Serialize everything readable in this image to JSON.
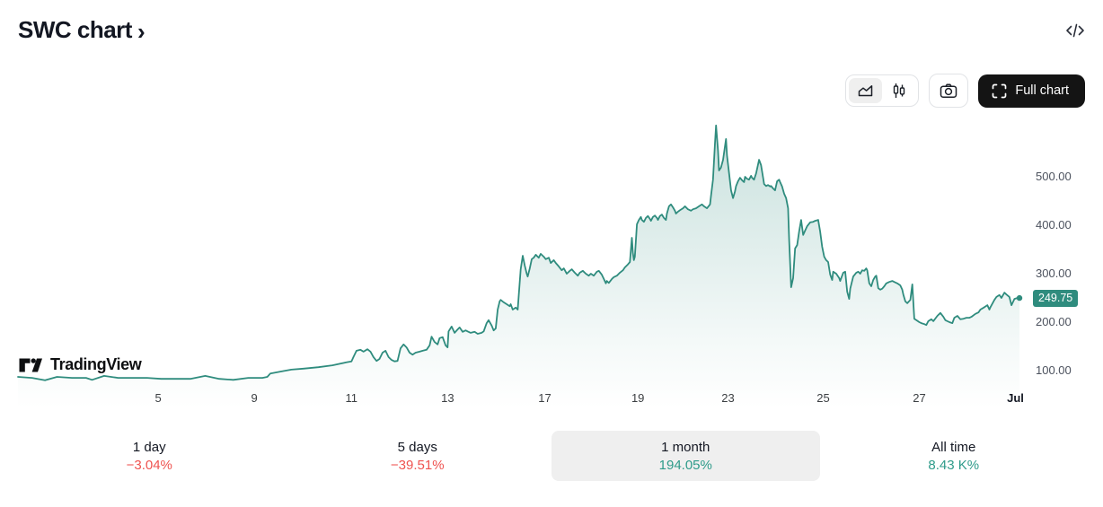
{
  "header": {
    "title": "SWC chart",
    "chevron": "›"
  },
  "toolbar": {
    "chart_type_options": [
      "area",
      "candles"
    ],
    "chart_type_selected": "area",
    "full_chart_label": "Full chart"
  },
  "watermark": {
    "brand": "TradingView"
  },
  "colors": {
    "accent": "#2F8C7E",
    "up": "#2E9B8A",
    "down": "#EF5350",
    "selected_bg": "#EFEFEF",
    "button_dark": "#141414",
    "axis_text": "#4C525E"
  },
  "chart_data": {
    "type": "area",
    "title": "SWC chart",
    "symbol": "SWC",
    "last_price": "249.75",
    "last_price_value": 249.75,
    "ylim": [
      22.2,
      624.1
    ],
    "grid": false,
    "y_ticks": [
      {
        "value": 500,
        "label": "500.00"
      },
      {
        "value": 400,
        "label": "400.00"
      },
      {
        "value": 300,
        "label": "300.00"
      },
      {
        "value": 200,
        "label": "200.00"
      },
      {
        "value": 100,
        "label": "100.00"
      }
    ],
    "x_ticks": [
      {
        "pos": 0.14,
        "label": "5"
      },
      {
        "pos": 0.236,
        "label": "9"
      },
      {
        "pos": 0.333,
        "label": "11"
      },
      {
        "pos": 0.429,
        "label": "13"
      },
      {
        "pos": 0.526,
        "label": "17"
      },
      {
        "pos": 0.619,
        "label": "19"
      },
      {
        "pos": 0.709,
        "label": "23"
      },
      {
        "pos": 0.804,
        "label": "25"
      },
      {
        "pos": 0.9,
        "label": "27"
      },
      {
        "pos": 0.996,
        "label": "Jul",
        "bold": true
      }
    ],
    "points": [
      [
        0,
        87
      ],
      [
        0.014,
        85
      ],
      [
        0.027,
        80
      ],
      [
        0.039,
        87
      ],
      [
        0.054,
        85
      ],
      [
        0.068,
        85
      ],
      [
        0.074,
        81
      ],
      [
        0.086,
        89
      ],
      [
        0.1,
        85
      ],
      [
        0.115,
        85
      ],
      [
        0.129,
        85
      ],
      [
        0.143,
        83
      ],
      [
        0.158,
        83
      ],
      [
        0.172,
        83
      ],
      [
        0.187,
        89
      ],
      [
        0.201,
        83
      ],
      [
        0.215,
        81
      ],
      [
        0.23,
        85
      ],
      [
        0.244,
        85
      ],
      [
        0.249,
        87
      ],
      [
        0.252,
        94
      ],
      [
        0.262,
        98
      ],
      [
        0.273,
        102
      ],
      [
        0.285,
        104
      ],
      [
        0.3,
        107
      ],
      [
        0.314,
        111
      ],
      [
        0.328,
        117
      ],
      [
        0.333,
        119
      ],
      [
        0.335,
        128
      ],
      [
        0.338,
        141
      ],
      [
        0.342,
        143
      ],
      [
        0.345,
        139
      ],
      [
        0.349,
        144
      ],
      [
        0.352,
        139
      ],
      [
        0.355,
        128
      ],
      [
        0.358,
        120
      ],
      [
        0.361,
        124
      ],
      [
        0.364,
        137
      ],
      [
        0.367,
        141
      ],
      [
        0.37,
        128
      ],
      [
        0.373,
        122
      ],
      [
        0.376,
        119
      ],
      [
        0.379,
        120
      ],
      [
        0.382,
        146
      ],
      [
        0.385,
        154
      ],
      [
        0.388,
        148
      ],
      [
        0.391,
        137
      ],
      [
        0.394,
        133
      ],
      [
        0.397,
        137
      ],
      [
        0.401,
        139
      ],
      [
        0.404,
        141
      ],
      [
        0.408,
        143
      ],
      [
        0.411,
        152
      ],
      [
        0.413,
        170
      ],
      [
        0.416,
        159
      ],
      [
        0.419,
        154
      ],
      [
        0.421,
        167
      ],
      [
        0.424,
        169
      ],
      [
        0.427,
        152
      ],
      [
        0.429,
        148
      ],
      [
        0.43,
        181
      ],
      [
        0.433,
        191
      ],
      [
        0.436,
        178
      ],
      [
        0.439,
        185
      ],
      [
        0.441,
        189
      ],
      [
        0.444,
        180
      ],
      [
        0.447,
        183
      ],
      [
        0.449,
        181
      ],
      [
        0.452,
        178
      ],
      [
        0.456,
        180
      ],
      [
        0.459,
        176
      ],
      [
        0.463,
        178
      ],
      [
        0.465,
        181
      ],
      [
        0.468,
        198
      ],
      [
        0.47,
        204
      ],
      [
        0.473,
        193
      ],
      [
        0.475,
        183
      ],
      [
        0.477,
        187
      ],
      [
        0.479,
        226
      ],
      [
        0.481,
        243
      ],
      [
        0.482,
        246
      ],
      [
        0.485,
        241
      ],
      [
        0.488,
        237
      ],
      [
        0.491,
        233
      ],
      [
        0.492,
        237
      ],
      [
        0.494,
        226
      ],
      [
        0.497,
        230
      ],
      [
        0.499,
        226
      ],
      [
        0.5,
        254
      ],
      [
        0.502,
        309
      ],
      [
        0.504,
        337
      ],
      [
        0.506,
        317
      ],
      [
        0.508,
        300
      ],
      [
        0.509,
        294
      ],
      [
        0.511,
        311
      ],
      [
        0.513,
        330
      ],
      [
        0.515,
        333
      ],
      [
        0.517,
        339
      ],
      [
        0.52,
        333
      ],
      [
        0.522,
        341
      ],
      [
        0.525,
        335
      ],
      [
        0.527,
        330
      ],
      [
        0.53,
        333
      ],
      [
        0.532,
        322
      ],
      [
        0.535,
        328
      ],
      [
        0.537,
        322
      ],
      [
        0.54,
        315
      ],
      [
        0.543,
        307
      ],
      [
        0.545,
        311
      ],
      [
        0.548,
        300
      ],
      [
        0.551,
        306
      ],
      [
        0.553,
        309
      ],
      [
        0.556,
        302
      ],
      [
        0.559,
        296
      ],
      [
        0.561,
        302
      ],
      [
        0.564,
        306
      ],
      [
        0.567,
        300
      ],
      [
        0.57,
        296
      ],
      [
        0.572,
        300
      ],
      [
        0.575,
        296
      ],
      [
        0.578,
        304
      ],
      [
        0.58,
        306
      ],
      [
        0.583,
        298
      ],
      [
        0.585,
        289
      ],
      [
        0.587,
        280
      ],
      [
        0.588,
        285
      ],
      [
        0.59,
        281
      ],
      [
        0.593,
        289
      ],
      [
        0.595,
        293
      ],
      [
        0.598,
        296
      ],
      [
        0.601,
        302
      ],
      [
        0.604,
        307
      ],
      [
        0.606,
        313
      ],
      [
        0.609,
        319
      ],
      [
        0.611,
        324
      ],
      [
        0.613,
        374
      ],
      [
        0.614,
        343
      ],
      [
        0.615,
        328
      ],
      [
        0.616,
        335
      ],
      [
        0.618,
        402
      ],
      [
        0.62,
        411
      ],
      [
        0.622,
        417
      ],
      [
        0.623,
        411
      ],
      [
        0.625,
        407
      ],
      [
        0.627,
        415
      ],
      [
        0.629,
        419
      ],
      [
        0.631,
        413
      ],
      [
        0.632,
        409
      ],
      [
        0.634,
        417
      ],
      [
        0.636,
        420
      ],
      [
        0.638,
        415
      ],
      [
        0.639,
        411
      ],
      [
        0.641,
        419
      ],
      [
        0.643,
        422
      ],
      [
        0.645,
        415
      ],
      [
        0.647,
        411
      ],
      [
        0.648,
        424
      ],
      [
        0.65,
        439
      ],
      [
        0.652,
        443
      ],
      [
        0.654,
        437
      ],
      [
        0.656,
        430
      ],
      [
        0.657,
        424
      ],
      [
        0.659,
        428
      ],
      [
        0.661,
        431
      ],
      [
        0.664,
        435
      ],
      [
        0.666,
        439
      ],
      [
        0.669,
        433
      ],
      [
        0.672,
        430
      ],
      [
        0.674,
        433
      ],
      [
        0.677,
        435
      ],
      [
        0.68,
        439
      ],
      [
        0.683,
        443
      ],
      [
        0.685,
        439
      ],
      [
        0.688,
        435
      ],
      [
        0.691,
        443
      ],
      [
        0.692,
        461
      ],
      [
        0.694,
        494
      ],
      [
        0.696,
        569
      ],
      [
        0.697,
        606
      ],
      [
        0.699,
        554
      ],
      [
        0.7,
        513
      ],
      [
        0.702,
        519
      ],
      [
        0.704,
        535
      ],
      [
        0.707,
        578
      ],
      [
        0.708,
        544
      ],
      [
        0.71,
        509
      ],
      [
        0.712,
        472
      ],
      [
        0.714,
        456
      ],
      [
        0.716,
        470
      ],
      [
        0.717,
        481
      ],
      [
        0.719,
        491
      ],
      [
        0.721,
        498
      ],
      [
        0.723,
        493
      ],
      [
        0.725,
        489
      ],
      [
        0.726,
        500
      ],
      [
        0.728,
        496
      ],
      [
        0.73,
        494
      ],
      [
        0.732,
        502
      ],
      [
        0.733,
        498
      ],
      [
        0.735,
        494
      ],
      [
        0.737,
        507
      ],
      [
        0.74,
        535
      ],
      [
        0.742,
        524
      ],
      [
        0.744,
        498
      ],
      [
        0.745,
        485
      ],
      [
        0.747,
        481
      ],
      [
        0.749,
        483
      ],
      [
        0.751,
        480
      ],
      [
        0.752,
        481
      ],
      [
        0.754,
        476
      ],
      [
        0.756,
        472
      ],
      [
        0.758,
        491
      ],
      [
        0.76,
        494
      ],
      [
        0.761,
        489
      ],
      [
        0.763,
        480
      ],
      [
        0.765,
        465
      ],
      [
        0.767,
        456
      ],
      [
        0.769,
        435
      ],
      [
        0.77,
        369
      ],
      [
        0.772,
        272
      ],
      [
        0.774,
        291
      ],
      [
        0.776,
        352
      ],
      [
        0.778,
        359
      ],
      [
        0.78,
        387
      ],
      [
        0.782,
        411
      ],
      [
        0.784,
        380
      ],
      [
        0.786,
        389
      ],
      [
        0.788,
        398
      ],
      [
        0.791,
        406
      ],
      [
        0.794,
        407
      ],
      [
        0.796,
        409
      ],
      [
        0.799,
        411
      ],
      [
        0.801,
        387
      ],
      [
        0.803,
        356
      ],
      [
        0.805,
        335
      ],
      [
        0.807,
        328
      ],
      [
        0.809,
        324
      ],
      [
        0.811,
        298
      ],
      [
        0.813,
        287
      ],
      [
        0.814,
        304
      ],
      [
        0.817,
        300
      ],
      [
        0.82,
        291
      ],
      [
        0.821,
        285
      ],
      [
        0.824,
        302
      ],
      [
        0.826,
        304
      ],
      [
        0.828,
        263
      ],
      [
        0.83,
        248
      ],
      [
        0.831,
        269
      ],
      [
        0.834,
        294
      ],
      [
        0.837,
        302
      ],
      [
        0.839,
        304
      ],
      [
        0.841,
        300
      ],
      [
        0.843,
        307
      ],
      [
        0.845,
        306
      ],
      [
        0.847,
        311
      ],
      [
        0.848,
        307
      ],
      [
        0.85,
        280
      ],
      [
        0.852,
        274
      ],
      [
        0.854,
        287
      ],
      [
        0.856,
        294
      ],
      [
        0.857,
        296
      ],
      [
        0.859,
        270
      ],
      [
        0.861,
        267
      ],
      [
        0.863,
        269
      ],
      [
        0.865,
        274
      ],
      [
        0.867,
        280
      ],
      [
        0.87,
        283
      ],
      [
        0.873,
        285
      ],
      [
        0.875,
        283
      ],
      [
        0.878,
        280
      ],
      [
        0.881,
        276
      ],
      [
        0.883,
        267
      ],
      [
        0.884,
        257
      ],
      [
        0.886,
        243
      ],
      [
        0.888,
        239
      ],
      [
        0.891,
        246
      ],
      [
        0.893,
        278
      ],
      [
        0.895,
        207
      ],
      [
        0.897,
        204
      ],
      [
        0.9,
        200
      ],
      [
        0.902,
        198
      ],
      [
        0.905,
        196
      ],
      [
        0.907,
        194
      ],
      [
        0.909,
        202
      ],
      [
        0.912,
        206
      ],
      [
        0.914,
        202
      ],
      [
        0.918,
        213
      ],
      [
        0.921,
        219
      ],
      [
        0.924,
        211
      ],
      [
        0.926,
        204
      ],
      [
        0.93,
        200
      ],
      [
        0.933,
        198
      ],
      [
        0.935,
        209
      ],
      [
        0.938,
        213
      ],
      [
        0.941,
        206
      ],
      [
        0.944,
        207
      ],
      [
        0.947,
        209
      ],
      [
        0.95,
        209
      ],
      [
        0.952,
        211
      ],
      [
        0.956,
        217
      ],
      [
        0.959,
        220
      ],
      [
        0.961,
        226
      ],
      [
        0.965,
        231
      ],
      [
        0.968,
        235
      ],
      [
        0.97,
        226
      ],
      [
        0.971,
        231
      ],
      [
        0.975,
        246
      ],
      [
        0.977,
        252
      ],
      [
        0.98,
        256
      ],
      [
        0.982,
        250
      ],
      [
        0.985,
        261
      ],
      [
        0.987,
        257
      ],
      [
        0.99,
        252
      ],
      [
        0.992,
        235
      ],
      [
        0.995,
        248
      ],
      [
        0.998,
        250
      ],
      [
        1,
        249.75
      ]
    ]
  },
  "periods": [
    {
      "label": "1 day",
      "change": "−3.04%",
      "direction": "down",
      "selected": false
    },
    {
      "label": "5 days",
      "change": "−39.51%",
      "direction": "down",
      "selected": false
    },
    {
      "label": "1 month",
      "change": "194.05%",
      "direction": "up",
      "selected": true
    },
    {
      "label": "All time",
      "change": "8.43 K%",
      "direction": "up",
      "selected": false
    }
  ]
}
